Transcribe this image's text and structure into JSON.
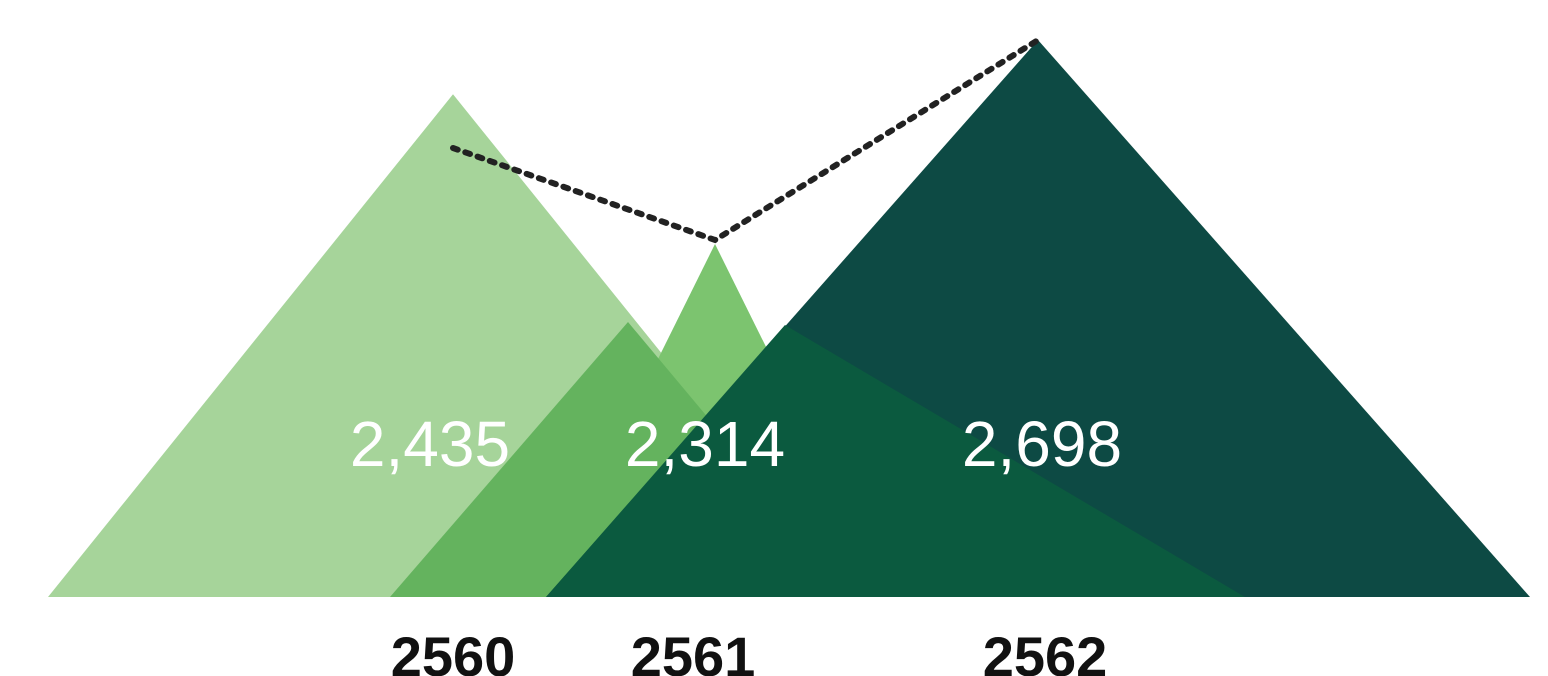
{
  "chart_data": {
    "type": "area",
    "categories": [
      "2560",
      "2561",
      "2562"
    ],
    "values": [
      2435,
      2314,
      2698
    ],
    "value_labels": [
      "2,435",
      "2,314",
      "2,698"
    ],
    "colors": [
      "#a6d49a",
      "#7cc46f",
      "#0d4a44"
    ],
    "overlap_colors": [
      "#64b35e",
      "#0b5a3f"
    ],
    "trend_line": "dotted",
    "title": "",
    "xlabel": "",
    "ylabel": ""
  }
}
